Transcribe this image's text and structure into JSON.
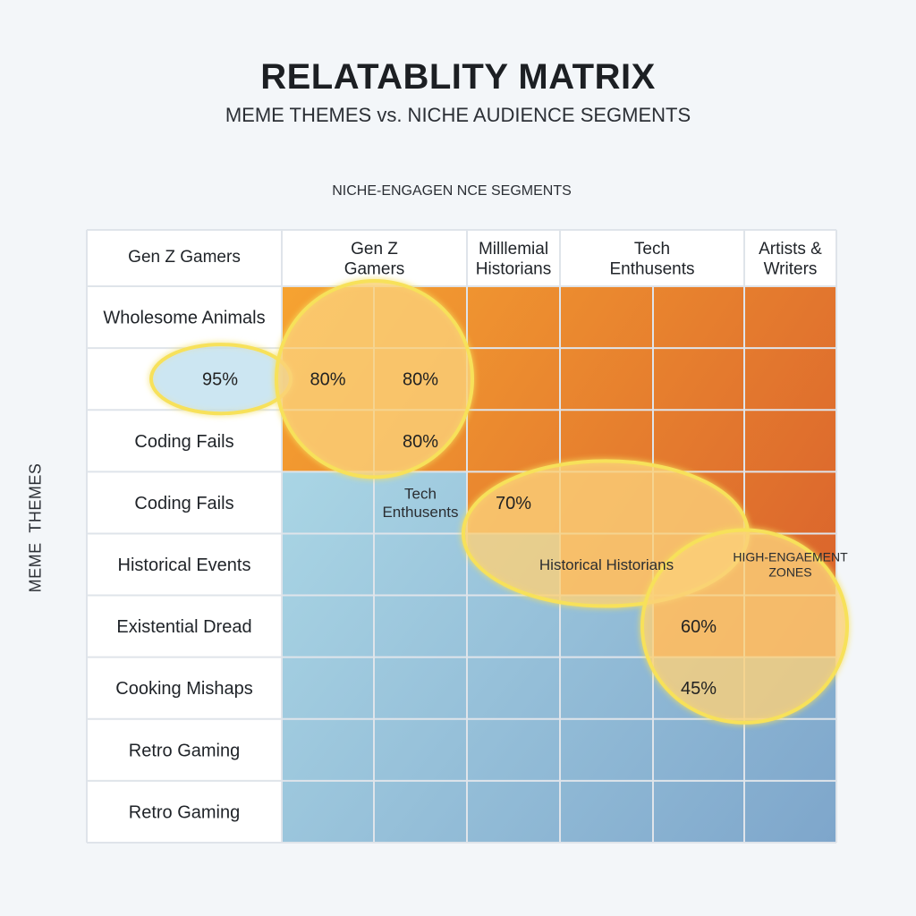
{
  "chart_data": {
    "type": "heatmap",
    "title": "RELATABLITY MATRIX",
    "subtitle": "MEME THEMES vs. NICHE AUDIENCE SEGMENTS",
    "xlabel": "NICHE-ENGAGEN NCE SEGMENTS",
    "ylabel": "MEME  THEMES",
    "corner_label": "Gen Z Gamers",
    "column_headers": [
      "Gen Z\nGamers",
      "Milllemial\nHistorians",
      "Tech\nEnthusents",
      "Artists &\nWriters"
    ],
    "column_header_spans": [
      2,
      1,
      2,
      1
    ],
    "row_labels": [
      "Wholesome Animals",
      "",
      "Coding Fails",
      "Coding Fails",
      "Historical Events",
      "Existential Dread",
      "Cooking Mishaps",
      "Retro Gaming",
      "Retro Gaming"
    ],
    "cell_zones": [
      [
        "hot",
        "hot",
        "hot",
        "hot",
        "hot",
        "hot"
      ],
      [
        "hot",
        "hot",
        "hot",
        "hot",
        "hot",
        "hot"
      ],
      [
        "hot",
        "hot",
        "hot",
        "hot",
        "hot",
        "hot"
      ],
      [
        "cool",
        "cool",
        "hot",
        "hot",
        "hot",
        "hot"
      ],
      [
        "cool",
        "cool",
        "cool",
        "hot",
        "hot",
        "hot"
      ],
      [
        "cool",
        "cool",
        "cool",
        "cool",
        "hot",
        "hot"
      ],
      [
        "cool",
        "cool",
        "cool",
        "cool",
        "cool",
        "cool"
      ],
      [
        "cool",
        "cool",
        "cool",
        "cool",
        "cool",
        "cool"
      ],
      [
        "cool",
        "cool",
        "cool",
        "cool",
        "cool",
        "cool"
      ]
    ],
    "value_labels": [
      {
        "text": "95%",
        "row": 1,
        "col": -1
      },
      {
        "text": "80%",
        "row": 1,
        "col": 0
      },
      {
        "text": "80%",
        "row": 1,
        "col": 1
      },
      {
        "text": "80%",
        "row": 2,
        "col": 1
      },
      {
        "text": "70%",
        "row": 3,
        "col": 2
      },
      {
        "text": "60%",
        "row": 5,
        "col": 4
      },
      {
        "text": "45%",
        "row": 6,
        "col": 4
      }
    ],
    "annotations": [
      {
        "text": "Tech\nEnthusents",
        "row": 3,
        "col": 1
      },
      {
        "text": "Historical Historians",
        "row": 4,
        "col": 3
      },
      {
        "text": "HIGH-ENGAEMENT\nZONES",
        "row": 4,
        "col": 5
      }
    ],
    "highlight_zones": [
      {
        "name": "zone-95",
        "rows": [
          1,
          1
        ],
        "cols": [
          -1,
          -1
        ]
      },
      {
        "name": "zone-80",
        "rows": [
          0,
          2
        ],
        "cols": [
          0,
          1
        ]
      },
      {
        "name": "zone-70",
        "rows": [
          3,
          4
        ],
        "cols": [
          2,
          4
        ]
      },
      {
        "name": "zone-60",
        "rows": [
          4,
          6
        ],
        "cols": [
          4,
          5
        ]
      }
    ]
  },
  "colors": {
    "hot_top_left": "#f6a331",
    "hot_bottom_right": "#d9612c",
    "cool_top_left": "#acd8e6",
    "cool_bottom_right": "#7ea6cb",
    "grid_line": "#dfe4ea",
    "highlight_stroke": "#f7e15a",
    "highlight_fill": "#fbd07a"
  }
}
